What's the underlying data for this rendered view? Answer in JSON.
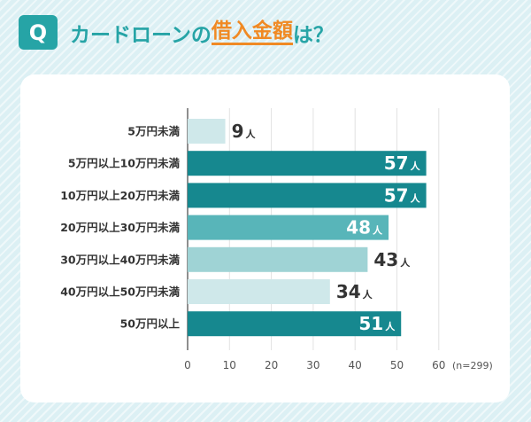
{
  "header": {
    "badge": "Q",
    "title_prefix": "カードローンの",
    "title_highlight": "借入金額",
    "title_suffix": "は？"
  },
  "colors": {
    "accent": "#26a4a6",
    "highlight": "#f08a24",
    "bar_dark": "#16888f",
    "bar_medium": "#58b5b9",
    "bar_light": "#9fd3d5",
    "bar_pale": "#cfe8ea"
  },
  "chart_data": {
    "type": "bar",
    "orientation": "horizontal",
    "categories": [
      "5万円未満",
      "5万円以上10万円未満",
      "10万円以上20万円未満",
      "20万円以上30万円未満",
      "30万円以上40万円未満",
      "40万円以上50万円未満",
      "50万円以上"
    ],
    "values": [
      9,
      57,
      57,
      48,
      43,
      34,
      51
    ],
    "value_unit": "人",
    "bar_colors": [
      "#cfe8ea",
      "#16888f",
      "#16888f",
      "#58b5b9",
      "#9fd3d5",
      "#cfe8ea",
      "#16888f"
    ],
    "label_inside": [
      false,
      true,
      true,
      true,
      false,
      false,
      true
    ],
    "x_ticks": [
      0,
      10,
      20,
      30,
      40,
      50,
      60
    ],
    "xlim": [
      0,
      60
    ],
    "note": "(n=299)",
    "grid": true
  }
}
